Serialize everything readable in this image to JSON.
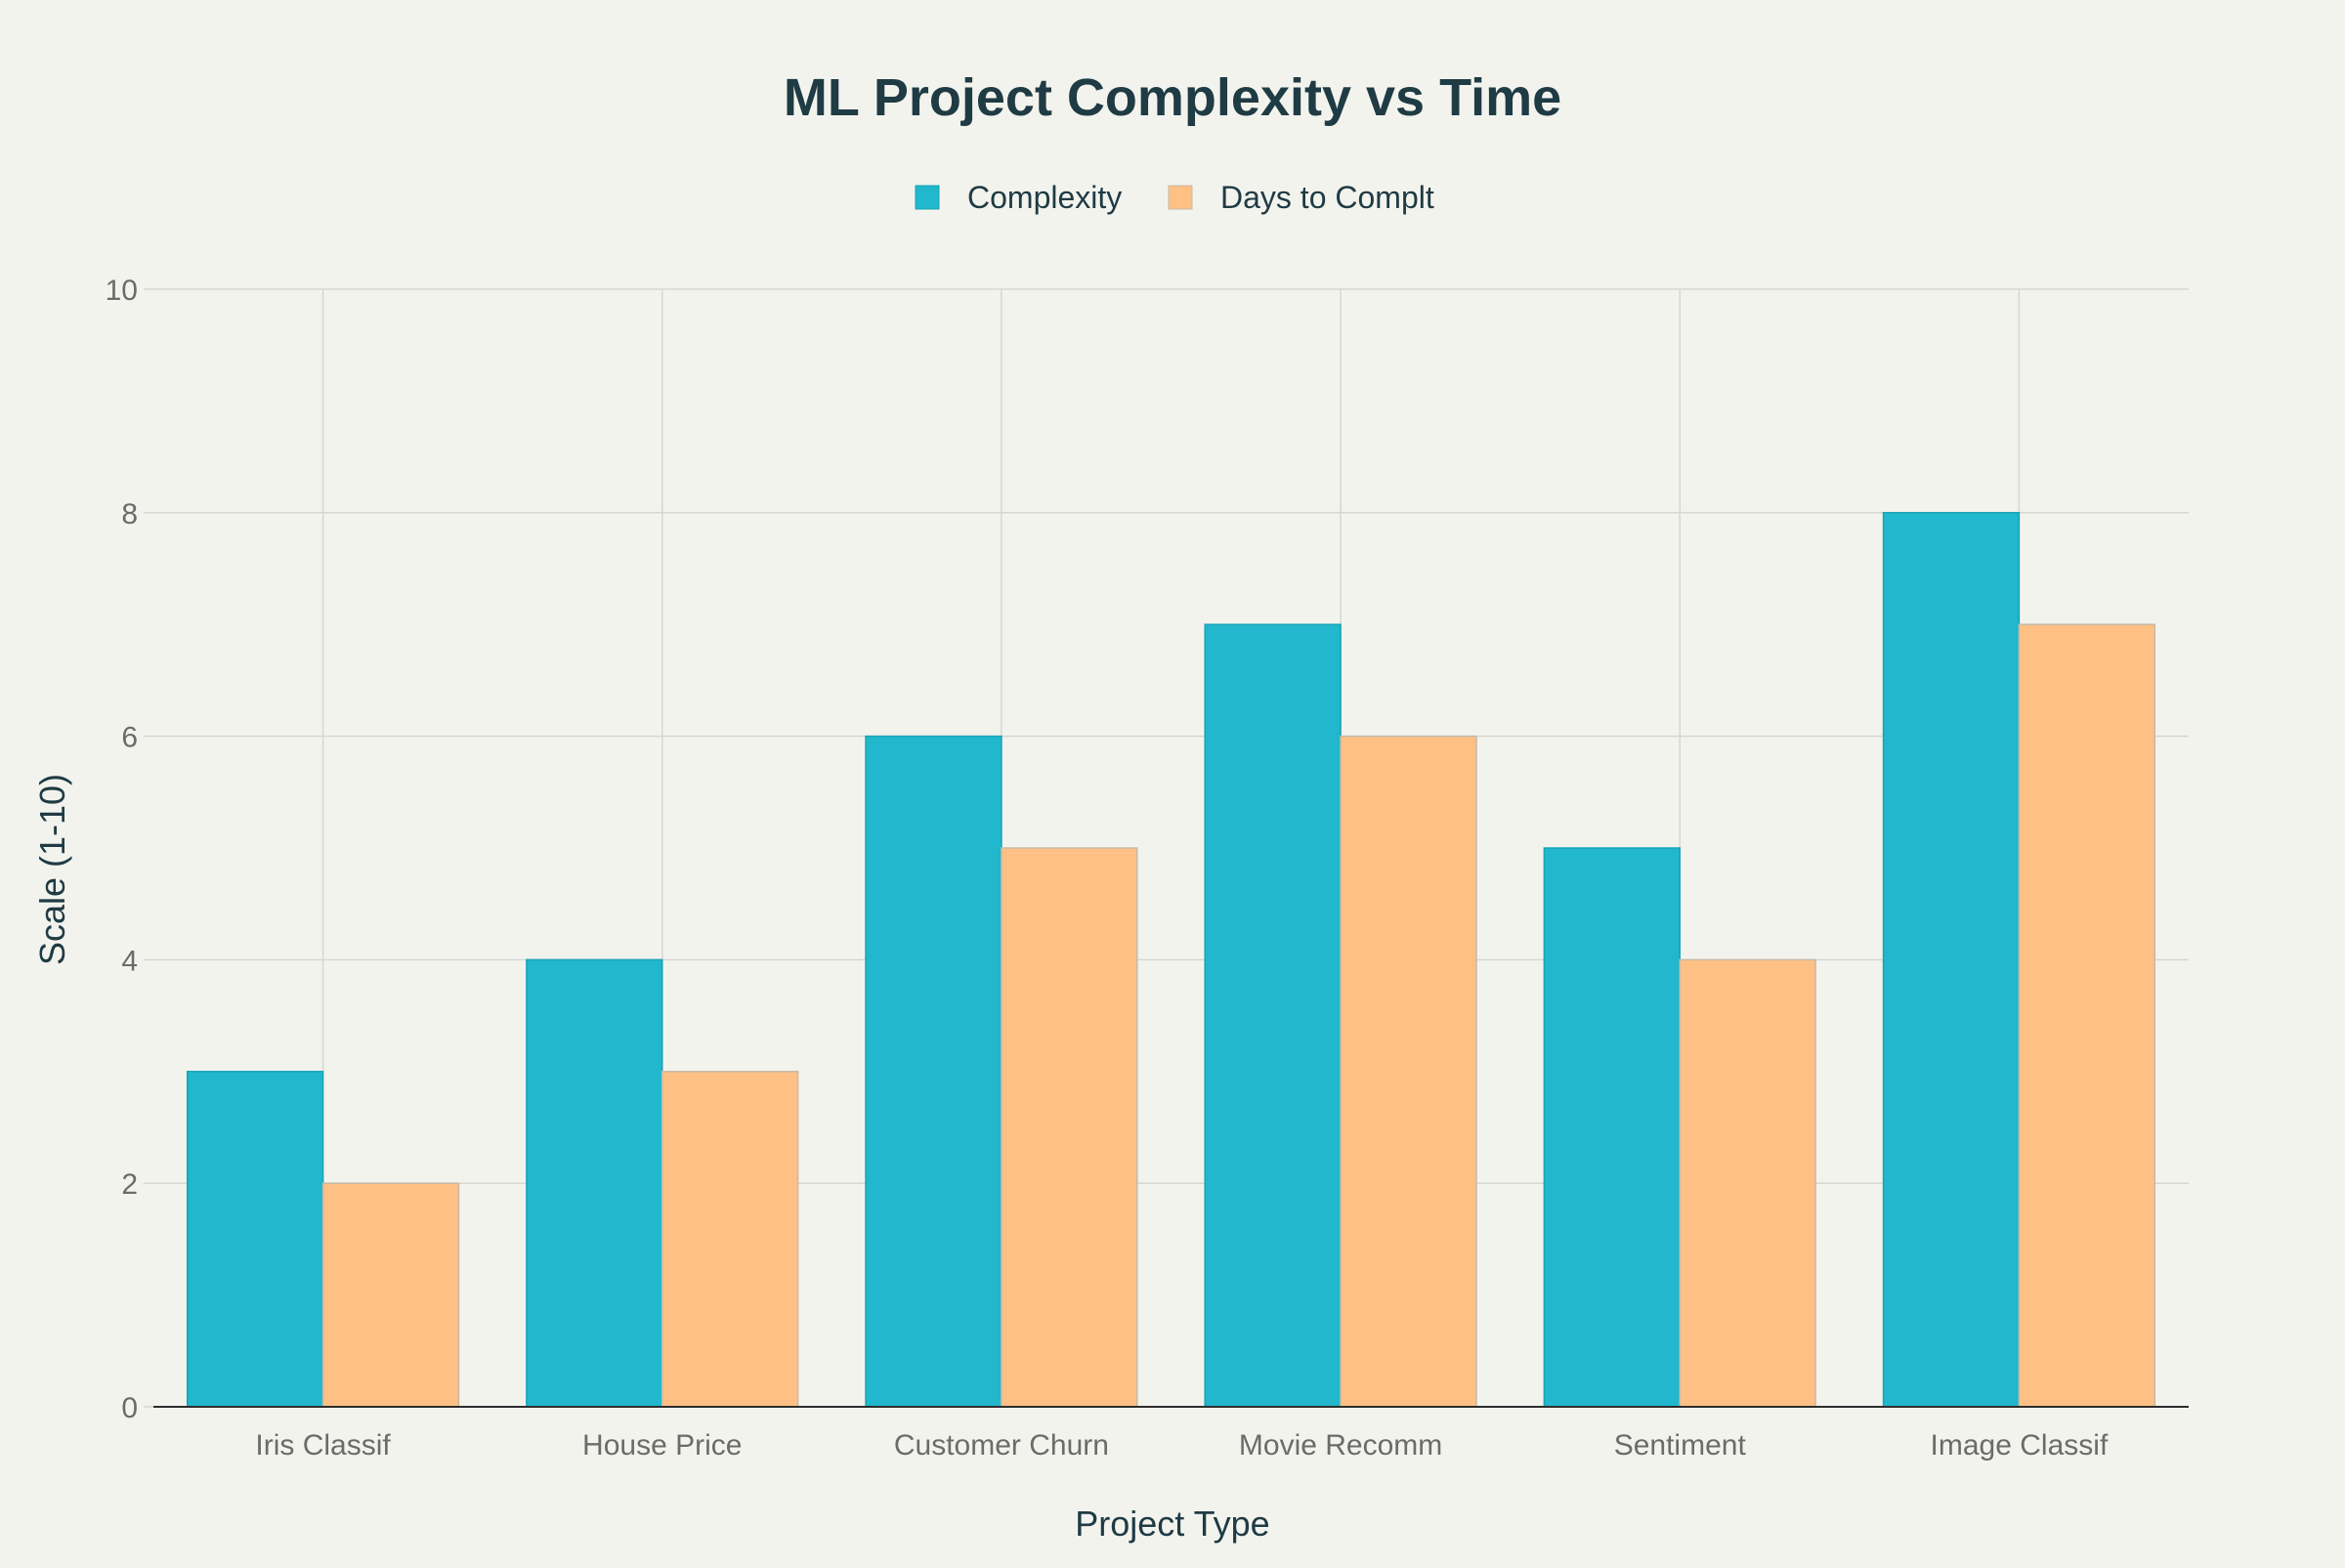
{
  "chart_data": {
    "type": "bar",
    "title": "ML Project Complexity vs Time",
    "xlabel": "Project Type",
    "ylabel": "Scale (1-10)",
    "categories": [
      "Iris Classif",
      "House Price",
      "Customer Churn",
      "Movie Recomm",
      "Sentiment",
      "Image Classif"
    ],
    "series": [
      {
        "name": "Complexity",
        "color": "#21b7cc",
        "values": [
          3,
          4,
          6,
          7,
          5,
          8
        ]
      },
      {
        "name": "Days to Complt",
        "color": "#ffc085",
        "values": [
          2,
          3,
          5,
          6,
          4,
          7
        ]
      }
    ],
    "ylim": [
      0,
      10
    ],
    "yticks": [
      0,
      2,
      4,
      6,
      8,
      10
    ],
    "grid": true,
    "legend_position": "top-center"
  },
  "colors": {
    "background": "#f3f3ee",
    "title_text": "#1f3b44",
    "tick_text": "#6b6b6b",
    "grid": "#d6d6d2",
    "axis": "#2d2d2d",
    "bar_outline": "#c7b9a6"
  }
}
